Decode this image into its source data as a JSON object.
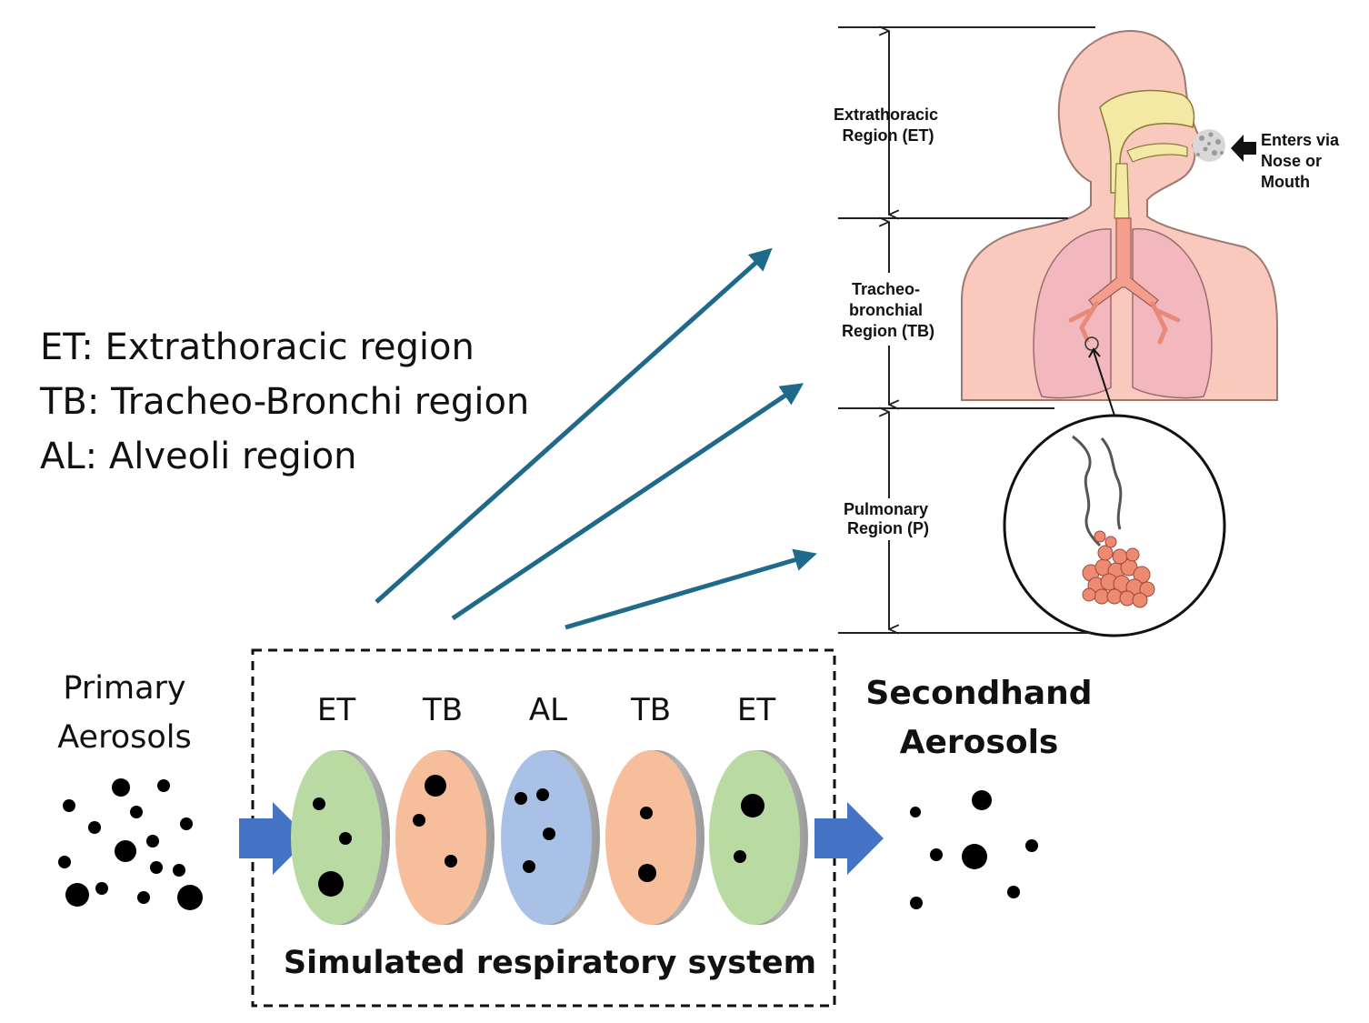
{
  "legend": {
    "et": "ET: Extrathoracic region",
    "tb": "TB: Tracheo-Bronchi region",
    "al": "AL: Alveoli region"
  },
  "primary": {
    "line1": "Primary",
    "line2": "Aerosols"
  },
  "secondhand": {
    "line1": "Secondhand",
    "line2": "Aerosols"
  },
  "system": {
    "caption": "Simulated respiratory system",
    "stages": [
      {
        "label": "ET",
        "color": "#b9dba3"
      },
      {
        "label": "TB",
        "color": "#f6be9b"
      },
      {
        "label": "AL",
        "color": "#a9c1e6"
      },
      {
        "label": "TB",
        "color": "#f6be9b"
      },
      {
        "label": "ET",
        "color": "#b9dba3"
      }
    ]
  },
  "anatomy": {
    "extrathoracic": [
      "Extrathoracic",
      "Region (ET)"
    ],
    "tracheobronchial": [
      "Tracheo-",
      "bronchial",
      "Region (TB)"
    ],
    "pulmonary": [
      "Pulmonary",
      "Region (P)"
    ],
    "enters": [
      "Enters via",
      "Nose or",
      "Mouth"
    ]
  },
  "colors": {
    "flow_arrow": "#4472c4",
    "pointer_arrow": "#1f6a8a",
    "skin": "#f9c9bd",
    "lung": "#f3b8be",
    "airway": "#f3e9a4"
  }
}
